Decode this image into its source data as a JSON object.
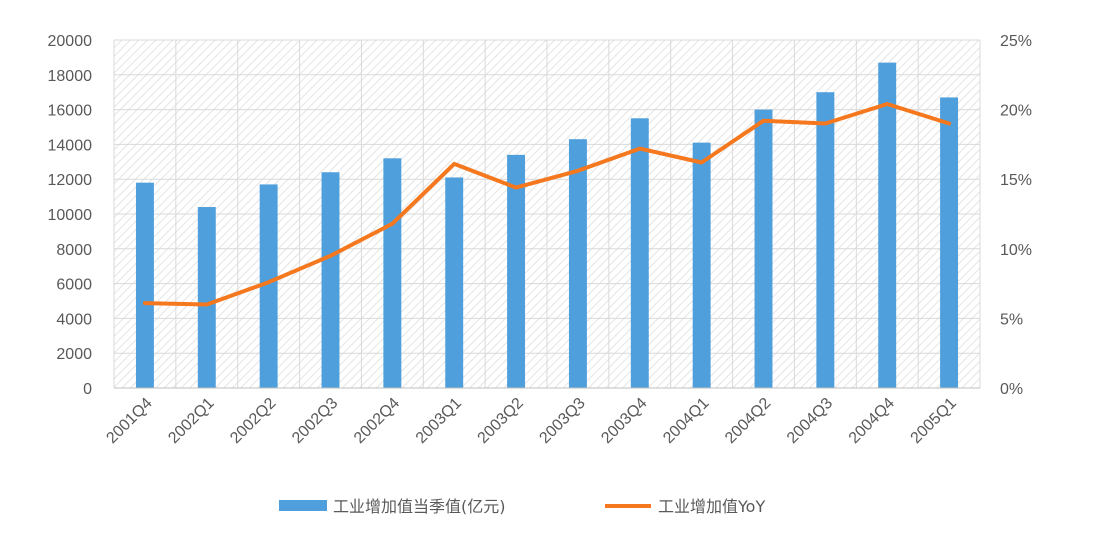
{
  "chart_data": {
    "type": "bar",
    "title": "",
    "categories": [
      "2001Q4",
      "2002Q1",
      "2002Q2",
      "2002Q3",
      "2002Q4",
      "2003Q1",
      "2003Q2",
      "2003Q3",
      "2003Q4",
      "2004Q1",
      "2004Q2",
      "2004Q3",
      "2004Q4",
      "2005Q1"
    ],
    "series": [
      {
        "name": "工业增加值当季值(亿元)",
        "type": "bar",
        "axis": "left",
        "color": "#4e9fdc",
        "values": [
          11800,
          10400,
          11700,
          12400,
          13200,
          12100,
          13400,
          14300,
          15500,
          14100,
          16000,
          17000,
          18700,
          16700
        ]
      },
      {
        "name": "工业增加值YoY",
        "type": "line",
        "axis": "right",
        "color": "#f5781e",
        "values": [
          6.1,
          6.0,
          7.6,
          9.5,
          11.8,
          16.1,
          14.4,
          15.6,
          17.2,
          16.2,
          19.2,
          19.0,
          20.4,
          19.0
        ]
      }
    ],
    "yleft": {
      "ylim": [
        0,
        20000
      ],
      "ticks": [
        "0",
        "2000",
        "4000",
        "6000",
        "8000",
        "10000",
        "12000",
        "14000",
        "16000",
        "18000",
        "20000"
      ]
    },
    "yright": {
      "ylim": [
        0,
        25
      ],
      "ticks": [
        "0%",
        "5%",
        "10%",
        "15%",
        "20%",
        "25%"
      ]
    },
    "grid": true,
    "legend": "bottom",
    "xlabel": "",
    "ylabel": ""
  }
}
